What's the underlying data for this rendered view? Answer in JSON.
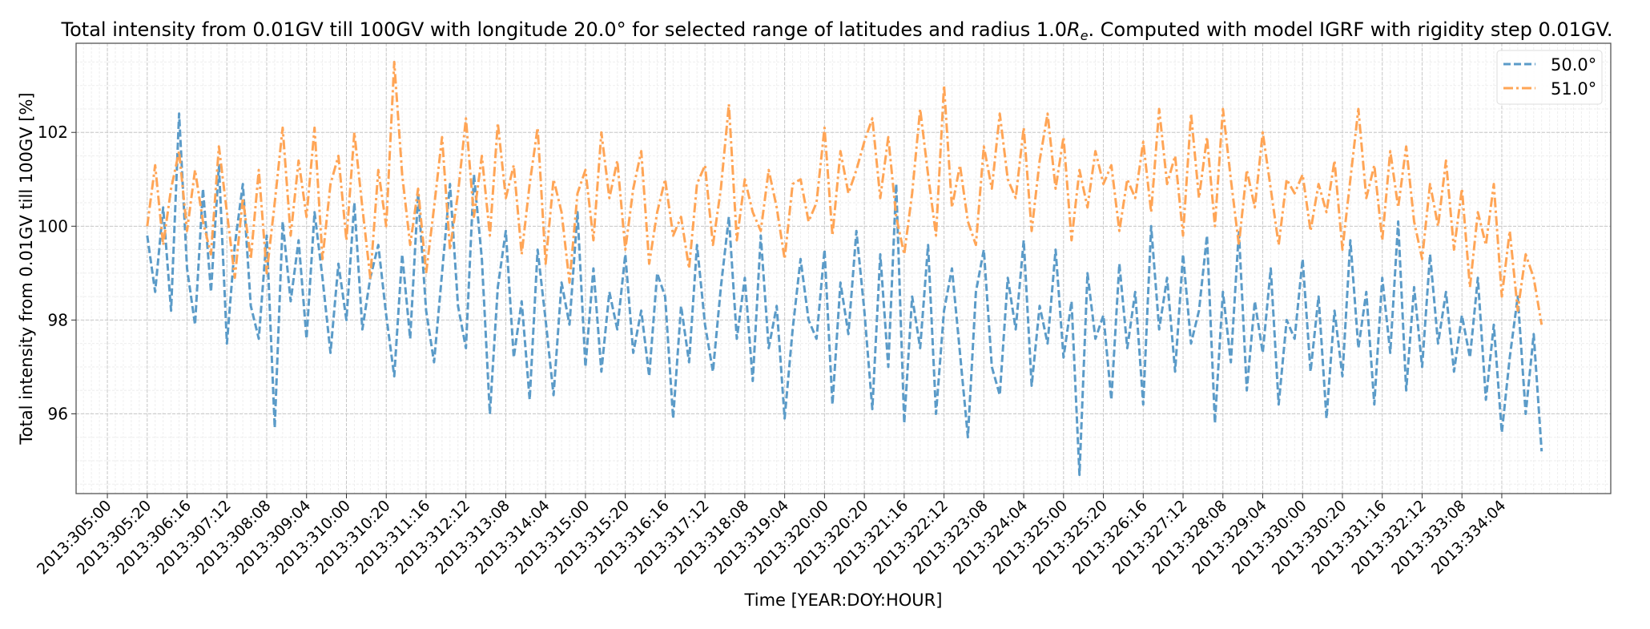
{
  "chart_data": {
    "type": "line",
    "title": {
      "before": "Total intensity from 0.01GV till 100GV with longitude 20.0° for selected range of latitudes and radius 1.0",
      "symbol": "R",
      "subscript": "e",
      "after": ". Computed with model IGRF with rigidity step 0.01GV."
    },
    "xlabel": "Time [YEAR:DOY:HOUR]",
    "ylabel": "Total intensity from 0.01GV till 100GV [%]",
    "x_unit": "hours since 2013:305:00",
    "xlim": [
      -15.7,
      754.7
    ],
    "ylim": [
      94.3,
      103.9
    ],
    "grid": true,
    "legend_position": "top-right",
    "xticks": {
      "values": [
        0,
        20,
        40,
        60,
        80,
        100,
        120,
        140,
        160,
        180,
        200,
        220,
        240,
        260,
        280,
        300,
        320,
        340,
        360,
        380,
        400,
        420,
        440,
        460,
        480,
        500,
        520,
        540,
        560,
        580,
        600,
        620,
        640,
        660,
        680,
        700
      ],
      "labels": [
        "2013:305:00",
        "2013:305:20",
        "2013:306:16",
        "2013:307:12",
        "2013:308:08",
        "2013:309:04",
        "2013:310:00",
        "2013:310:20",
        "2013:311:16",
        "2013:312:12",
        "2013:313:08",
        "2013:314:04",
        "2013:315:00",
        "2013:315:20",
        "2013:316:16",
        "2013:317:12",
        "2013:318:08",
        "2013:319:04",
        "2013:320:00",
        "2013:320:20",
        "2013:321:16",
        "2013:322:12",
        "2013:323:08",
        "2013:324:04",
        "2013:325:00",
        "2013:325:20",
        "2013:326:16",
        "2013:327:12",
        "2013:328:08",
        "2013:329:04",
        "2013:330:00",
        "2013:330:20",
        "2013:331:16",
        "2013:332:12",
        "2013:333:08",
        "2013:334:04"
      ]
    },
    "yticks": {
      "values": [
        96,
        98,
        100,
        102
      ],
      "labels": [
        "96",
        "98",
        "100",
        "102"
      ]
    },
    "x_start": 20,
    "x_step": 4,
    "series": [
      {
        "name": "50.0°",
        "color": "#5b9bc8",
        "style": "dashed",
        "values": [
          99.8,
          98.6,
          100.4,
          98.2,
          102.4,
          99.1,
          97.9,
          100.8,
          98.6,
          101.3,
          97.5,
          99.6,
          100.9,
          98.3,
          97.6,
          99.8,
          95.7,
          100.1,
          98.4,
          99.7,
          97.6,
          100.3,
          98.9,
          97.3,
          99.2,
          98.0,
          100.5,
          97.8,
          98.9,
          99.6,
          98.1,
          96.8,
          99.4,
          97.6,
          100.7,
          98.2,
          97.1,
          99.0,
          100.9,
          98.3,
          97.4,
          101.1,
          99.3,
          96.0,
          98.7,
          99.9,
          97.2,
          98.4,
          96.3,
          99.5,
          98.0,
          96.4,
          98.8,
          97.9,
          100.3,
          97.0,
          99.1,
          96.9,
          98.6,
          97.8,
          99.4,
          97.3,
          98.2,
          96.8,
          99.0,
          98.5,
          95.9,
          98.3,
          97.1,
          99.6,
          97.9,
          96.9,
          98.7,
          100.2,
          97.6,
          98.9,
          96.7,
          99.8,
          97.4,
          98.3,
          95.9,
          97.8,
          99.3,
          98.0,
          97.6,
          99.5,
          96.2,
          98.8,
          97.7,
          99.9,
          98.2,
          96.1,
          99.4,
          97.0,
          100.9,
          95.8,
          98.5,
          97.4,
          99.6,
          96.0,
          98.2,
          99.1,
          97.3,
          95.5,
          98.6,
          99.5,
          97.0,
          96.4,
          98.9,
          97.8,
          99.7,
          96.6,
          98.3,
          97.5,
          99.5,
          97.2,
          98.4,
          94.7,
          99.0,
          97.6,
          98.1,
          96.3,
          99.2,
          97.4,
          98.6,
          96.2,
          100.0,
          97.8,
          98.9,
          96.9,
          99.4,
          97.5,
          98.2,
          99.8,
          95.8,
          98.6,
          97.1,
          99.9,
          96.5,
          98.4,
          97.3,
          99.1,
          96.2,
          98.0,
          97.6,
          99.3,
          96.9,
          98.5,
          95.9,
          98.2,
          96.8,
          99.7,
          97.4,
          98.6,
          96.2,
          98.9,
          97.3,
          100.1,
          96.5,
          98.7,
          97.0,
          99.4,
          97.5,
          98.6,
          96.9,
          98.1,
          97.2,
          98.9,
          96.3,
          97.9,
          95.6,
          97.2,
          98.5,
          96.0,
          97.7,
          95.2
        ]
      },
      {
        "name": "51.0°",
        "color": "#ffa556",
        "style": "dashdot",
        "values": [
          100.0,
          101.3,
          99.6,
          100.8,
          101.6,
          99.9,
          101.2,
          100.1,
          99.4,
          101.7,
          100.3,
          98.9,
          100.6,
          99.3,
          101.2,
          99.0,
          100.5,
          102.1,
          99.8,
          101.4,
          100.2,
          102.1,
          99.3,
          100.9,
          101.5,
          99.7,
          102.0,
          100.4,
          98.9,
          101.2,
          100.0,
          103.5,
          101.1,
          99.6,
          100.8,
          99.0,
          100.4,
          101.9,
          99.5,
          100.7,
          102.3,
          100.2,
          101.5,
          99.8,
          102.2,
          100.6,
          101.3,
          99.4,
          100.9,
          102.1,
          99.2,
          101.0,
          100.3,
          98.8,
          100.7,
          101.2,
          99.7,
          102.0,
          100.6,
          101.4,
          99.5,
          100.8,
          101.6,
          99.2,
          100.3,
          101.0,
          99.8,
          100.2,
          99.1,
          100.9,
          101.3,
          99.6,
          100.8,
          102.6,
          99.7,
          101.0,
          100.3,
          99.9,
          101.2,
          100.4,
          99.3,
          100.9,
          101.0,
          100.1,
          100.5,
          102.1,
          99.8,
          101.6,
          100.7,
          101.2,
          101.8,
          102.3,
          100.6,
          101.9,
          100.2,
          99.4,
          100.7,
          102.5,
          101.1,
          99.8,
          103.0,
          100.4,
          101.3,
          100.1,
          99.6,
          101.7,
          100.8,
          102.4,
          101.0,
          100.6,
          102.1,
          99.9,
          101.4,
          102.4,
          100.8,
          101.9,
          99.7,
          101.2,
          100.4,
          101.6,
          100.9,
          101.3,
          99.9,
          101.0,
          100.6,
          101.8,
          100.3,
          102.5,
          100.9,
          101.5,
          99.8,
          102.4,
          100.6,
          101.9,
          100.0,
          102.5,
          101.0,
          99.6,
          101.2,
          100.4,
          102.0,
          100.8,
          99.6,
          101.0,
          100.7,
          101.1,
          99.9,
          100.9,
          100.3,
          101.4,
          99.5,
          101.0,
          102.5,
          100.6,
          101.3,
          99.7,
          101.6,
          100.4,
          101.7,
          100.1,
          99.3,
          100.9,
          100.0,
          101.4,
          99.5,
          100.8,
          98.7,
          100.3,
          99.6,
          100.9,
          98.5,
          99.9,
          98.2,
          99.4,
          98.9,
          97.9
        ]
      }
    ]
  }
}
